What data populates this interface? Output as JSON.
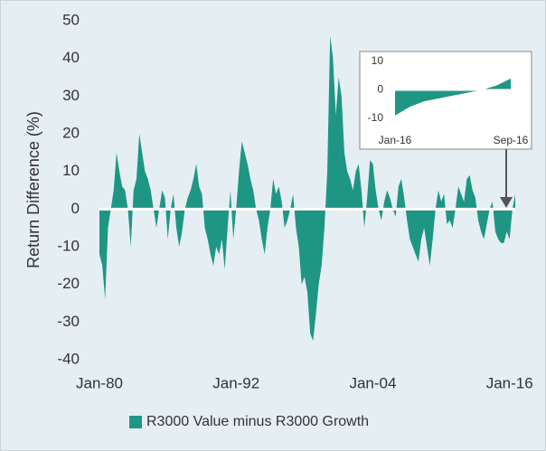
{
  "chart_data": [
    {
      "type": "area",
      "y_label": "Return Difference (%)",
      "categories": [
        "Jan-80",
        "Apr-80",
        "Jul-80",
        "Oct-80",
        "Jan-81",
        "Apr-81",
        "Jul-81",
        "Oct-81",
        "Jan-82",
        "Apr-82",
        "Jul-82",
        "Oct-82",
        "Jan-83",
        "Apr-83",
        "Jul-83",
        "Oct-83",
        "Jan-84",
        "Apr-84",
        "Jul-84",
        "Oct-84",
        "Jan-85",
        "Apr-85",
        "Jul-85",
        "Oct-85",
        "Jan-86",
        "Apr-86",
        "Jul-86",
        "Oct-86",
        "Jan-87",
        "Apr-87",
        "Jul-87",
        "Oct-87",
        "Jan-88",
        "Apr-88",
        "Jul-88",
        "Oct-88",
        "Jan-89",
        "Apr-89",
        "Jul-89",
        "Oct-89",
        "Jan-90",
        "Apr-90",
        "Jul-90",
        "Oct-90",
        "Jan-91",
        "Apr-91",
        "Jul-91",
        "Oct-91",
        "Jan-92",
        "Apr-92",
        "Jul-92",
        "Oct-92",
        "Jan-93",
        "Apr-93",
        "Jul-93",
        "Oct-93",
        "Jan-94",
        "Apr-94",
        "Jul-94",
        "Oct-94",
        "Jan-95",
        "Apr-95",
        "Jul-95",
        "Oct-95",
        "Jan-96",
        "Apr-96",
        "Jul-96",
        "Oct-96",
        "Jan-97",
        "Apr-97",
        "Jul-97",
        "Oct-97",
        "Jan-98",
        "Apr-98",
        "Jul-98",
        "Oct-98",
        "Jan-99",
        "Apr-99",
        "Jul-99",
        "Oct-99",
        "Jan-00",
        "Apr-00",
        "Jul-00",
        "Oct-00",
        "Jan-01",
        "Apr-01",
        "Jul-01",
        "Oct-01",
        "Jan-02",
        "Apr-02",
        "Jul-02",
        "Oct-02",
        "Jan-03",
        "Apr-03",
        "Jul-03",
        "Oct-03",
        "Jan-04",
        "Apr-04",
        "Jul-04",
        "Oct-04",
        "Jan-05",
        "Apr-05",
        "Jul-05",
        "Oct-05",
        "Jan-06",
        "Apr-06",
        "Jul-06",
        "Oct-06",
        "Jan-07",
        "Apr-07",
        "Jul-07",
        "Oct-07",
        "Jan-08",
        "Apr-08",
        "Jul-08",
        "Oct-08",
        "Jan-09",
        "Apr-09",
        "Jul-09",
        "Oct-09",
        "Jan-10",
        "Apr-10",
        "Jul-10",
        "Oct-10",
        "Jan-11",
        "Apr-11",
        "Jul-11",
        "Oct-11",
        "Jan-12",
        "Apr-12",
        "Jul-12",
        "Oct-12",
        "Jan-13",
        "Apr-13",
        "Jul-13",
        "Oct-13",
        "Jan-14",
        "Apr-14",
        "Jul-14",
        "Oct-14",
        "Jan-15",
        "Apr-15",
        "Jul-15",
        "Oct-15",
        "Jan-16",
        "Apr-16",
        "Jul-16"
      ],
      "series": [
        {
          "name": "R3000 Value minus R3000 Growth",
          "color": "#1f9684",
          "values": [
            -12,
            -15,
            -24,
            -5,
            0,
            5,
            15,
            10,
            6,
            5,
            0,
            -10,
            5,
            8,
            20,
            15,
            10,
            8,
            5,
            0,
            -5,
            0,
            5,
            3,
            -8,
            0,
            4,
            -5,
            -10,
            -6,
            0,
            3,
            5,
            8,
            12,
            6,
            4,
            -5,
            -8,
            -12,
            -15,
            -10,
            -12,
            -8,
            -16,
            -5,
            5,
            -8,
            0,
            10,
            18,
            15,
            12,
            8,
            5,
            0,
            -3,
            -8,
            -12,
            -5,
            0,
            8,
            4,
            6,
            2,
            -5,
            -3,
            0,
            4,
            -5,
            -10,
            -20,
            -18,
            -22,
            -33,
            -35,
            -28,
            -20,
            -15,
            -5,
            10,
            46,
            40,
            25,
            35,
            30,
            15,
            10,
            8,
            5,
            10,
            12,
            5,
            -5,
            3,
            13,
            12,
            5,
            0,
            -3,
            2,
            5,
            3,
            0,
            -2,
            6,
            8,
            3,
            -3,
            -8,
            -10,
            -12,
            -14,
            -8,
            -5,
            -10,
            -15,
            -8,
            0,
            5,
            2,
            4,
            -4,
            -3,
            -5,
            0,
            6,
            4,
            2,
            8,
            9,
            5,
            3,
            -3,
            -6,
            -8,
            -4,
            0,
            2,
            -6,
            -8,
            -9,
            -9,
            -6,
            -8,
            0,
            4
          ]
        }
      ],
      "ylim": [
        -40,
        50
      ],
      "yticks": [
        -40,
        -30,
        -20,
        -10,
        0,
        10,
        20,
        30,
        40,
        50
      ],
      "xticks": [
        "Jan-80",
        "Jan-92",
        "Jan-04",
        "Jan-16"
      ],
      "legend": "bottom"
    },
    {
      "type": "area",
      "categories": [
        "Jan-16",
        "Feb-16",
        "Mar-16",
        "Apr-16",
        "May-16",
        "Jun-16",
        "Jul-16",
        "Aug-16",
        "Sep-16"
      ],
      "series": [
        {
          "color": "#1f9684",
          "values": [
            -9,
            -6,
            -4,
            -3,
            -2,
            -1,
            0,
            1.5,
            4
          ]
        }
      ],
      "ylim": [
        -10,
        10
      ],
      "yticks": [
        -10,
        0,
        10
      ],
      "xticks": [
        "Jan-16",
        "Sep-16"
      ]
    }
  ]
}
